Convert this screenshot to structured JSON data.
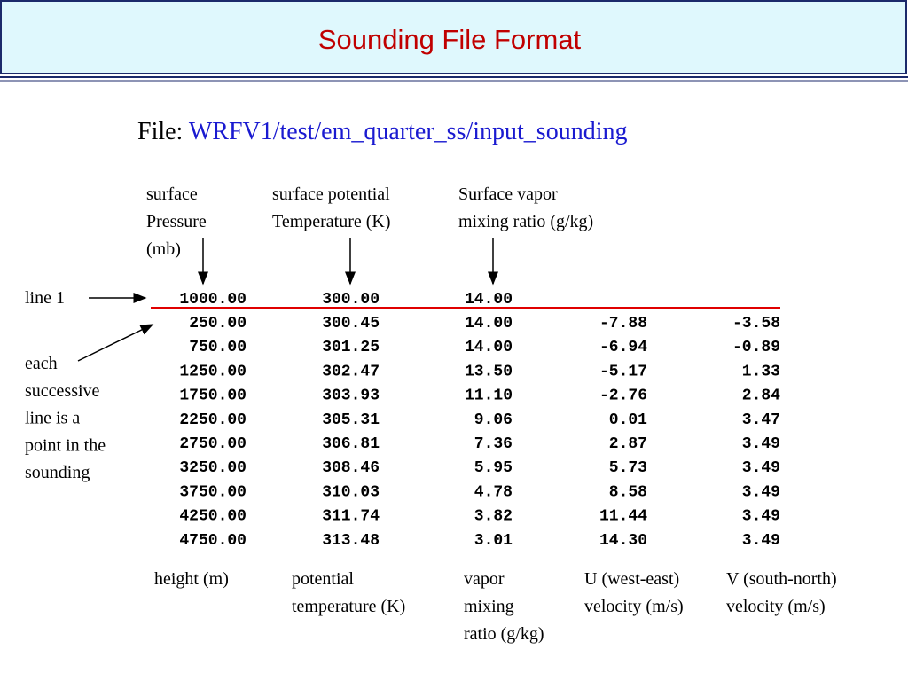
{
  "header": {
    "title": "Sounding File Format"
  },
  "file": {
    "label": "File:",
    "path": "WRFV1/test/em_quarter_ss/input_sounding"
  },
  "top_labels": [
    {
      "lines": [
        "surface",
        "Pressure",
        "(mb)"
      ]
    },
    {
      "lines": [
        "surface potential",
        "Temperature (K)"
      ]
    },
    {
      "lines": [
        "Surface vapor",
        "mixing ratio (g/kg)"
      ]
    }
  ],
  "side_labels": [
    {
      "lines": [
        "line 1"
      ]
    },
    {
      "lines": [
        "each",
        "successive",
        "line is a",
        "point in the",
        "sounding"
      ]
    }
  ],
  "table": {
    "first_line": [
      "1000.00",
      "300.00",
      "14.00"
    ],
    "rows": [
      [
        "250.00",
        "300.45",
        "14.00",
        "-7.88",
        "-3.58"
      ],
      [
        "750.00",
        "301.25",
        "14.00",
        "-6.94",
        "-0.89"
      ],
      [
        "1250.00",
        "302.47",
        "13.50",
        "-5.17",
        "1.33"
      ],
      [
        "1750.00",
        "303.93",
        "11.10",
        "-2.76",
        "2.84"
      ],
      [
        "2250.00",
        "305.31",
        "9.06",
        "0.01",
        "3.47"
      ],
      [
        "2750.00",
        "306.81",
        "7.36",
        "2.87",
        "3.49"
      ],
      [
        "3250.00",
        "308.46",
        "5.95",
        "5.73",
        "3.49"
      ],
      [
        "3750.00",
        "310.03",
        "4.78",
        "8.58",
        "3.49"
      ],
      [
        "4250.00",
        "311.74",
        "3.82",
        "11.44",
        "3.49"
      ],
      [
        "4750.00",
        "313.48",
        "3.01",
        "14.30",
        "3.49"
      ]
    ]
  },
  "bottom_labels": [
    {
      "lines": [
        "height (m)"
      ]
    },
    {
      "lines": [
        "potential",
        "temperature (K)"
      ]
    },
    {
      "lines": [
        "vapor",
        "mixing",
        "ratio (g/kg)"
      ]
    },
    {
      "lines": [
        "U (west-east)",
        "velocity (m/s)"
      ]
    },
    {
      "lines": [
        "V (south-north)",
        "velocity (m/s)"
      ]
    }
  ]
}
